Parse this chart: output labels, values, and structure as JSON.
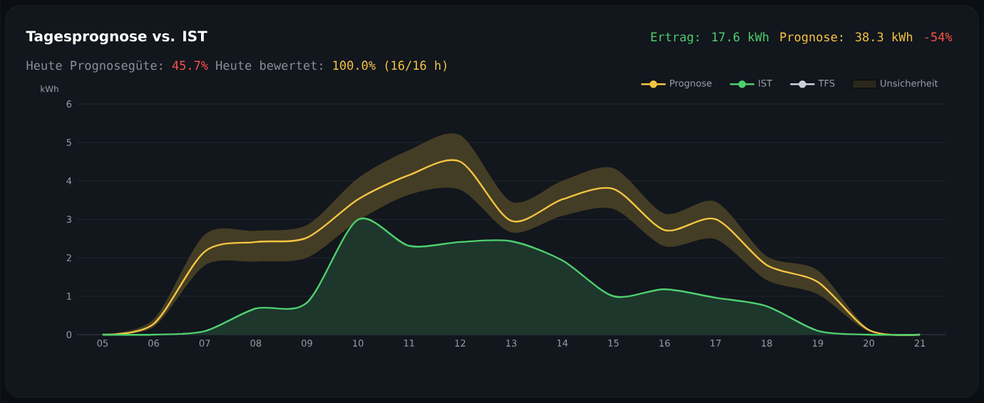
{
  "chart_data": {
    "type": "line",
    "title": "Tagesprognose vs. IST",
    "annotations": [
      "Ertrag: 17.6 kWh",
      "Prognose: 38.3 kWh",
      "-54%",
      "Heute Prognosegüte:",
      "45.7%",
      "Heute bewertet:",
      "100.0% (16/16 h)"
    ],
    "ylabel": "kWh",
    "categories": [
      "05",
      "06",
      "07",
      "08",
      "09",
      "10",
      "11",
      "12",
      "13",
      "14",
      "15",
      "16",
      "17",
      "18",
      "19",
      "20",
      "21"
    ],
    "series": [
      {
        "name": "Prognose",
        "color": "#f5c542",
        "values": [
          0,
          0.28,
          2.16,
          2.41,
          2.52,
          3.52,
          4.15,
          4.5,
          2.96,
          3.52,
          3.79,
          2.72,
          3.0,
          1.81,
          1.37,
          0.12,
          0
        ],
        "lower": [
          0,
          0.2,
          1.8,
          1.9,
          2.0,
          2.96,
          3.64,
          3.77,
          2.66,
          3.09,
          3.27,
          2.3,
          2.48,
          1.42,
          1.05,
          0.08,
          0
        ],
        "upper": [
          0,
          0.4,
          2.6,
          2.7,
          2.85,
          4.07,
          4.8,
          5.19,
          3.46,
          4.0,
          4.33,
          3.15,
          3.46,
          2.04,
          1.67,
          0.15,
          0
        ]
      },
      {
        "name": "IST",
        "type": "area",
        "color": "#4fcf6e",
        "values": [
          0,
          0,
          0.09,
          0.68,
          0.83,
          2.99,
          2.31,
          2.41,
          2.43,
          1.93,
          1.0,
          1.18,
          0.96,
          0.74,
          0.1,
          0,
          0
        ]
      },
      {
        "name": "TFS",
        "color": "#c9d1d9",
        "values": [
          null,
          null,
          null,
          null,
          null,
          null,
          null,
          null,
          null,
          null,
          null,
          null,
          null,
          null,
          null,
          null,
          null
        ]
      },
      {
        "name": "Unsicherheit",
        "type": "area",
        "color": "#2a281d",
        "values": [
          null,
          null,
          null,
          null,
          null,
          null,
          null,
          null,
          null,
          null,
          null,
          null,
          null,
          null,
          null,
          null,
          null
        ]
      }
    ],
    "ylim": [
      0,
      6
    ],
    "yticks": [
      0,
      1,
      2,
      3,
      4,
      5,
      6
    ],
    "grid": "y",
    "legend": "top right"
  }
}
